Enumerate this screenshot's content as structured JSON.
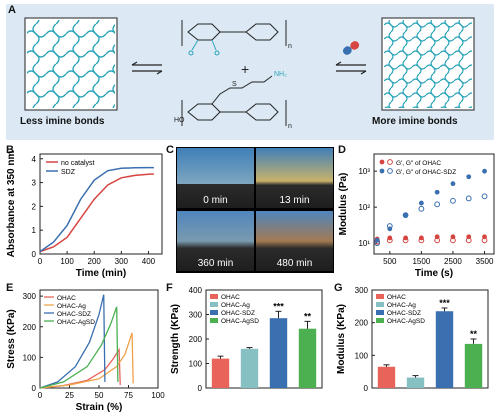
{
  "panelA": {
    "letter": "A",
    "left_label": "Less imine bonds",
    "right_label": "More imine bonds",
    "chem": {
      "n1": "n",
      "n2": "n",
      "nh2": "NH₂",
      "ho": "HO",
      "oh": "OH",
      "o": "O",
      "s": "S"
    }
  },
  "panelB": {
    "letter": "B"
  },
  "panelC": {
    "letter": "C",
    "times": [
      "0 min",
      "13 min",
      "360 min",
      "480 min"
    ]
  },
  "panelD": {
    "letter": "D"
  },
  "panelE": {
    "letter": "E"
  },
  "panelF": {
    "letter": "F"
  },
  "panelG": {
    "letter": "G"
  },
  "chart_data": [
    {
      "id": "B",
      "type": "line",
      "xlabel": "Time (min)",
      "ylabel": "Absorbance at 350 nm",
      "xlim": [
        0,
        450
      ],
      "ylim": [
        0,
        4.2
      ],
      "xticks": [
        0,
        100,
        200,
        300,
        400
      ],
      "yticks": [
        0,
        1,
        2,
        3,
        4
      ],
      "legend": "top-left",
      "series": [
        {
          "name": "no catalyst",
          "color": "#d64541",
          "x": [
            0,
            50,
            100,
            150,
            200,
            250,
            300,
            350,
            400,
            420
          ],
          "y": [
            0.1,
            0.3,
            0.7,
            1.5,
            2.3,
            2.9,
            3.2,
            3.3,
            3.35,
            3.36
          ]
        },
        {
          "name": "SDZ",
          "color": "#3a6fb0",
          "x": [
            0,
            50,
            100,
            150,
            200,
            250,
            300,
            350,
            400,
            420
          ],
          "y": [
            0.1,
            0.5,
            1.2,
            2.3,
            3.1,
            3.5,
            3.6,
            3.62,
            3.63,
            3.63
          ]
        }
      ]
    },
    {
      "id": "D",
      "type": "scatter",
      "xlabel": "Time (s)",
      "ylabel": "Modulus (Pa)",
      "xlim": [
        0,
        3800
      ],
      "yscale": "log",
      "ylim": [
        5,
        3000
      ],
      "xticks": [
        500,
        1500,
        2500,
        3500
      ],
      "yticks": [
        10,
        100,
        1000
      ],
      "ytick_labels": [
        "10¹",
        "10²",
        "10³"
      ],
      "legend": "top-left",
      "series": [
        {
          "name": "G′, G″ of OHAC",
          "color": "#d64541",
          "x": [
            100,
            500,
            1000,
            1500,
            2000,
            2500,
            3000,
            3500
          ],
          "g1": [
            13,
            14,
            14,
            14,
            15,
            15,
            15,
            15
          ],
          "g2": [
            11,
            12,
            12,
            12,
            12,
            12,
            12,
            12
          ]
        },
        {
          "name": "G′, G″ of OHAC-SDZ",
          "color": "#3a6fb0",
          "x": [
            100,
            500,
            1000,
            1500,
            2000,
            2500,
            3000,
            3500
          ],
          "g1": [
            12,
            25,
            60,
            130,
            260,
            450,
            700,
            1000
          ],
          "g2": [
            10,
            30,
            60,
            90,
            120,
            150,
            175,
            200
          ]
        }
      ]
    },
    {
      "id": "E",
      "type": "line",
      "xlabel": "Strain (%)",
      "ylabel": "Stress (KPa)",
      "xlim": [
        0,
        100
      ],
      "ylim": [
        0,
        320
      ],
      "xticks": [
        0,
        25,
        50,
        75,
        100
      ],
      "yticks": [
        0,
        100,
        200,
        300
      ],
      "legend": "top-left",
      "series": [
        {
          "name": "OHAC",
          "color": "#e8645a",
          "x": [
            0,
            20,
            40,
            55,
            62,
            67,
            68
          ],
          "y": [
            0,
            8,
            25,
            60,
            95,
            125,
            10
          ]
        },
        {
          "name": "OHAC-Ag",
          "color": "#f0a34b",
          "x": [
            0,
            25,
            50,
            65,
            72,
            78,
            79
          ],
          "y": [
            0,
            10,
            30,
            70,
            110,
            180,
            15
          ]
        },
        {
          "name": "OHAC-SDZ",
          "color": "#3a6fb0",
          "x": [
            0,
            15,
            30,
            42,
            50,
            54,
            55
          ],
          "y": [
            0,
            20,
            70,
            150,
            240,
            305,
            20
          ]
        },
        {
          "name": "OHAC-AgSD",
          "color": "#4caf50",
          "x": [
            0,
            20,
            40,
            52,
            60,
            65,
            66
          ],
          "y": [
            0,
            20,
            70,
            140,
            210,
            265,
            20
          ]
        }
      ]
    },
    {
      "id": "F",
      "type": "bar",
      "ylabel": "Strength (KPa)",
      "ylim": [
        0,
        400
      ],
      "yticks": [
        0,
        100,
        200,
        300,
        400
      ],
      "legend": "top-left",
      "categories": [
        "OHAC",
        "OHAC-Ag",
        "OHAC-SDZ",
        "OHAC-AgSD"
      ],
      "values": [
        120,
        160,
        285,
        242
      ],
      "errors": [
        10,
        5,
        28,
        30
      ],
      "significance": [
        "",
        "",
        "***",
        "**"
      ],
      "colors": [
        "#e8645a",
        "#86c0c3",
        "#3a6fb0",
        "#4caf50"
      ]
    },
    {
      "id": "G",
      "type": "bar",
      "ylabel": "Modulus (KPa)",
      "ylim": [
        0,
        300
      ],
      "yticks": [
        0,
        100,
        200,
        300
      ],
      "legend": "top-left",
      "categories": [
        "OHAC",
        "OHAC-Ag",
        "OHAC-SDZ",
        "OHAC-AgSD"
      ],
      "values": [
        65,
        32,
        235,
        135
      ],
      "errors": [
        6,
        6,
        10,
        15
      ],
      "significance": [
        "",
        "",
        "***",
        "**"
      ],
      "colors": [
        "#e8645a",
        "#86c0c3",
        "#3a6fb0",
        "#4caf50"
      ]
    }
  ]
}
